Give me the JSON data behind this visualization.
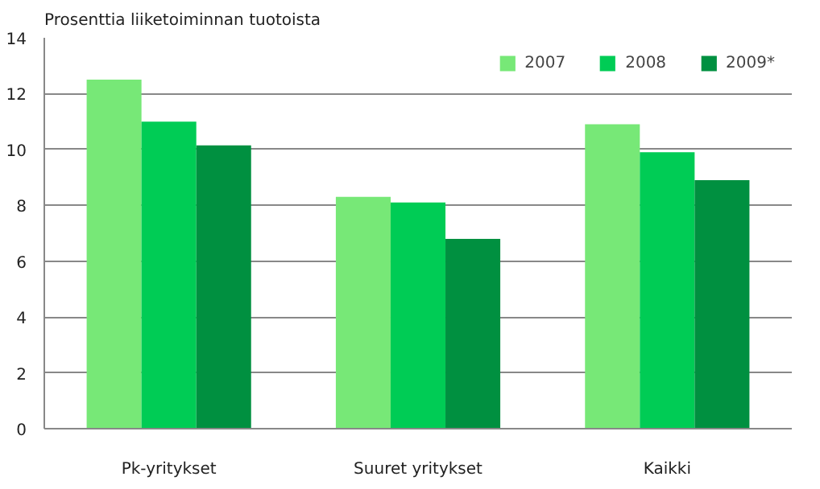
{
  "chart_data": {
    "type": "bar",
    "ylabel": "Prosenttia liiketoiminnan tuotoista",
    "categories": [
      "Pk-yritykset",
      "Suuret yritykset",
      "Kaikki"
    ],
    "series": [
      {
        "name": "2007",
        "color": "#77e877",
        "values": [
          12.5,
          8.3,
          10.9
        ]
      },
      {
        "name": "2008",
        "color": "#00cc55",
        "values": [
          11.0,
          8.1,
          9.9
        ]
      },
      {
        "name": "2009*",
        "color": "#009040",
        "values": [
          10.15,
          6.8,
          8.9
        ]
      }
    ],
    "ylim": [
      0,
      14
    ],
    "yticks": [
      0,
      2,
      4,
      6,
      8,
      10,
      12,
      14
    ],
    "grid": "y",
    "legend": "top right"
  }
}
